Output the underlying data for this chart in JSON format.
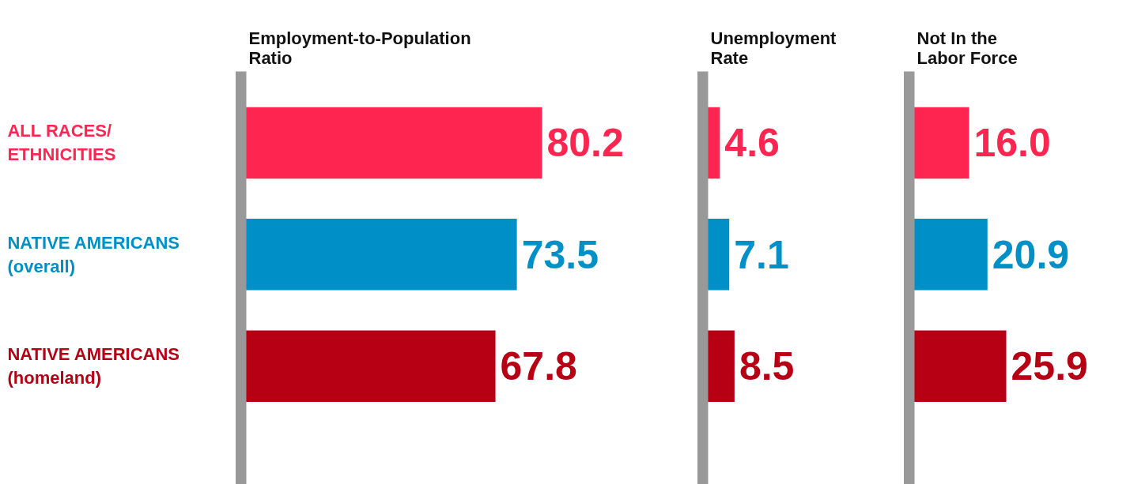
{
  "chart_data": [
    {
      "type": "bar",
      "orientation": "horizontal",
      "title": "Employment-to-Population\nRatio",
      "categories": [
        "ALL RACES/\nETHNICITIES",
        "NATIVE AMERICANS\n(overall)",
        "NATIVE AMERICANS\n(homeland)"
      ],
      "values": [
        80.2,
        73.5,
        67.8
      ],
      "value_labels": [
        "80.2",
        "73.5",
        "67.8"
      ],
      "colors": [
        "#fe2650",
        "#0090c8",
        "#b70014"
      ],
      "data_labels": true
    },
    {
      "type": "bar",
      "orientation": "horizontal",
      "title": "Unemployment\nRate",
      "values": [
        4.6,
        7.1,
        8.5
      ],
      "value_labels": [
        "4.6",
        "7.1",
        "8.5"
      ],
      "colors": [
        "#fe2650",
        "#0090c8",
        "#b70014"
      ],
      "data_labels": true,
      "tick_labels": false
    },
    {
      "type": "bar",
      "orientation": "horizontal",
      "title": "Not In the\nLabor Force",
      "values": [
        16.0,
        20.9,
        25.9
      ],
      "value_labels": [
        "16.0",
        "20.9",
        "25.9"
      ],
      "colors": [
        "#fe2650",
        "#0090c8",
        "#b70014"
      ],
      "data_labels": true,
      "tick_labels": false
    }
  ]
}
